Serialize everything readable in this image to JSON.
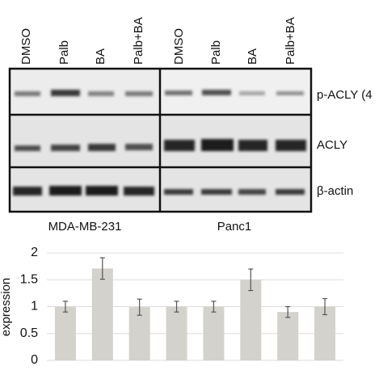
{
  "blot": {
    "lanes": [
      "DMSO",
      "Palb",
      "BA",
      "Palb+BA",
      "DMSO",
      "Palb",
      "BA",
      "Palb+BA"
    ],
    "rows": [
      "p-ACLY (4",
      "ACLY",
      "β-actin"
    ],
    "cell_lines": [
      "MDA-MB-231",
      "Panc1"
    ]
  },
  "chart_data": {
    "type": "bar",
    "y_label": "expression",
    "values": [
      1.0,
      1.71,
      0.99,
      1.0,
      1.0,
      1.5,
      0.9,
      1.0
    ],
    "errors": [
      0.1,
      0.2,
      0.15,
      0.1,
      0.1,
      0.2,
      0.1,
      0.15
    ],
    "color": "#d3d2cd",
    "ylim": [
      0,
      2
    ],
    "yticks": [
      0,
      0.5,
      1,
      1.5,
      2
    ],
    "grid": true
  }
}
